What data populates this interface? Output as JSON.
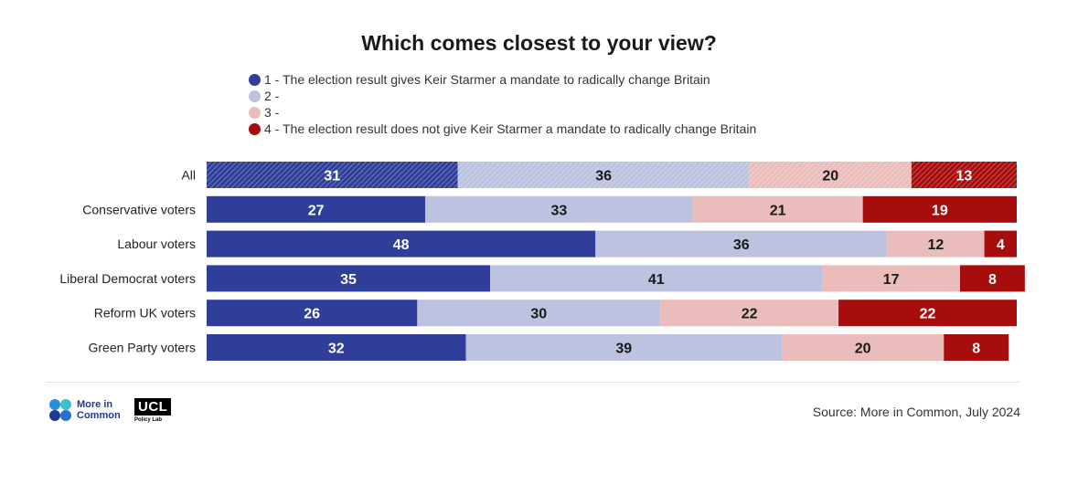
{
  "chart_data": {
    "type": "bar",
    "orientation": "horizontal",
    "stacked": true,
    "title": "Which comes closest to your view?",
    "categories": [
      "All",
      "Conservative voters",
      "Labour voters",
      "Liberal Democrat voters",
      "Reform UK voters",
      "Green Party voters"
    ],
    "series": [
      {
        "name": "1 - The election result gives Keir Starmer a mandate to radically change Britain",
        "color": "#2f3f99",
        "values": [
          31,
          27,
          48,
          35,
          26,
          32
        ]
      },
      {
        "name": "2 -",
        "color": "#bcc2e0",
        "values": [
          36,
          33,
          36,
          41,
          30,
          39
        ]
      },
      {
        "name": "3 -",
        "color": "#ebbcbc",
        "values": [
          20,
          21,
          12,
          17,
          22,
          20
        ]
      },
      {
        "name": "4 - The election result does not give Keir Starmer a mandate to radically change Britain",
        "color": "#a80d0d",
        "values": [
          13,
          19,
          4,
          8,
          22,
          8
        ]
      }
    ],
    "label_colors": [
      "#ffffff",
      "#1a1a1a",
      "#1a1a1a",
      "#ffffff"
    ],
    "hatched_rows": [
      "All"
    ],
    "xlim": [
      0,
      100
    ],
    "legend_position": "top-left"
  },
  "footer": {
    "brand_line1": "More in",
    "brand_line2": "Common",
    "ucl_logo": "UCL",
    "ucl_sub": "Policy Lab",
    "source": "Source: More in Common, July 2024"
  }
}
